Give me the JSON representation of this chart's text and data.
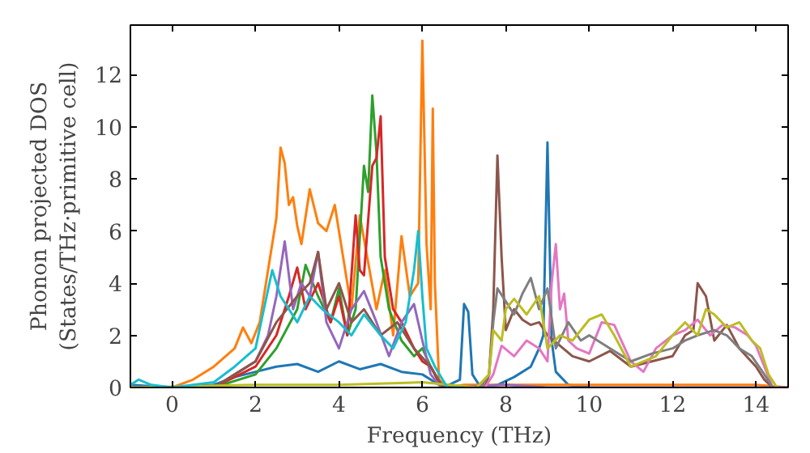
{
  "chart_data": {
    "type": "line",
    "xlabel": "Frequency (THz)",
    "ylabel": "Phonon projected DOS\n(States/THz·primitive cell)",
    "xlim": [
      -1,
      14.77
    ],
    "ylim": [
      0,
      13.9
    ],
    "xticks": [
      0,
      2,
      4,
      6,
      8,
      10,
      12,
      14
    ],
    "yticks": [
      0,
      2,
      4,
      6,
      8,
      10,
      12
    ],
    "grid": false,
    "series": [
      {
        "color": "#1f77b4",
        "x": [
          -1,
          0,
          1,
          1.5,
          2,
          2.5,
          3,
          3.5,
          4,
          4.5,
          5,
          5.5,
          6,
          6.3,
          6.5,
          6.9,
          7.0,
          7.1,
          7.2,
          7.4,
          7.8,
          8.2,
          8.6,
          8.8,
          8.9,
          9.0,
          9.1,
          9.2,
          9.5,
          10
        ],
        "values": [
          0.1,
          0,
          0.1,
          0.4,
          0.6,
          0.8,
          0.9,
          0.6,
          1.0,
          0.7,
          0.9,
          0.6,
          0.5,
          0.2,
          0,
          0.3,
          3.2,
          2.9,
          0.5,
          0,
          0.1,
          0.4,
          0.8,
          1.5,
          2.0,
          9.4,
          1.8,
          0.6,
          0.1,
          0
        ]
      },
      {
        "color": "#ff7f0e",
        "x": [
          -1,
          0,
          0.5,
          1,
          1.5,
          1.7,
          1.9,
          2.1,
          2.3,
          2.5,
          2.6,
          2.7,
          2.8,
          2.9,
          3.0,
          3.1,
          3.3,
          3.5,
          3.7,
          3.9,
          4.1,
          4.3,
          4.5,
          4.7,
          4.9,
          5.1,
          5.3,
          5.5,
          5.7,
          5.9,
          6.0,
          6.1,
          6.2,
          6.25,
          6.3,
          6.4,
          6.6,
          7,
          10,
          14,
          14.77
        ],
        "values": [
          0,
          0,
          0.3,
          0.8,
          1.5,
          2.3,
          1.7,
          2.5,
          4.5,
          6.5,
          9.2,
          8.6,
          7.0,
          7.3,
          6.2,
          5.5,
          7.6,
          6.3,
          6.0,
          7.0,
          5.0,
          3.0,
          6.6,
          4.8,
          3.0,
          4.5,
          2.0,
          5.8,
          3.5,
          4.0,
          13.3,
          5.5,
          3.0,
          10.7,
          4.0,
          0.3,
          0,
          0.1,
          0.1,
          0.1,
          0
        ]
      },
      {
        "color": "#2ca02c",
        "x": [
          1,
          2,
          2.5,
          3,
          3.2,
          3.5,
          3.8,
          4.0,
          4.2,
          4.4,
          4.6,
          4.7,
          4.8,
          4.9,
          5.0,
          5.2,
          5.5,
          5.8,
          6.0,
          6.2,
          6.4,
          6.6,
          7
        ],
        "values": [
          0,
          0.5,
          1.5,
          3,
          4.7,
          3.5,
          2.5,
          3.8,
          2.0,
          3.0,
          8.5,
          7.5,
          11.2,
          9.0,
          5.0,
          3.0,
          1.8,
          1.2,
          1.5,
          0.8,
          0.2,
          0,
          0
        ]
      },
      {
        "color": "#d62728",
        "x": [
          1,
          2,
          2.5,
          2.8,
          3.0,
          3.2,
          3.5,
          3.8,
          4.0,
          4.2,
          4.4,
          4.5,
          4.6,
          4.8,
          4.9,
          5.0,
          5.1,
          5.3,
          5.5,
          5.8,
          6.0,
          6.2,
          6.4,
          6.6,
          7
        ],
        "values": [
          0,
          0.8,
          2.0,
          3.5,
          4.6,
          3.0,
          4.0,
          2.5,
          3.5,
          2.0,
          6.6,
          4.5,
          4.3,
          8.5,
          8.8,
          10.4,
          5.0,
          3.0,
          2.5,
          1.5,
          1.0,
          0.8,
          0.2,
          0,
          0
        ]
      },
      {
        "color": "#9467bd",
        "x": [
          1,
          1.5,
          2,
          2.3,
          2.5,
          2.7,
          2.9,
          3.1,
          3.3,
          3.5,
          3.7,
          4.0,
          4.3,
          4.6,
          4.9,
          5.2,
          5.5,
          5.8,
          6.0,
          6.2,
          6.4,
          6.6,
          8,
          9,
          12,
          14.77
        ],
        "values": [
          0,
          0.5,
          1.0,
          2.0,
          3.5,
          5.6,
          3.0,
          4.0,
          3.5,
          5.2,
          2.5,
          1.5,
          3.0,
          3.7,
          2.5,
          1.2,
          2.5,
          3.2,
          1.8,
          0.5,
          0.1,
          0,
          0.1,
          0,
          0,
          0
        ]
      },
      {
        "color": "#8c564b",
        "x": [
          1,
          1.5,
          2,
          2.5,
          3.0,
          3.3,
          3.5,
          3.7,
          4.0,
          4.3,
          4.6,
          5.0,
          5.4,
          5.8,
          6.2,
          6.5,
          7.0,
          7.5,
          7.6,
          7.7,
          7.8,
          7.9,
          8.0,
          8.2,
          8.4,
          8.6,
          8.8,
          9.0,
          9.3,
          9.6,
          10,
          10.5,
          11,
          11.5,
          12,
          12.3,
          12.5,
          12.6,
          12.8,
          13,
          13.3,
          13.6,
          14,
          14.2,
          14.4
        ],
        "values": [
          0,
          0.5,
          1.0,
          2.5,
          3.5,
          4.0,
          5.2,
          3.0,
          4.0,
          2.5,
          3.0,
          2.0,
          2.5,
          1.5,
          0.8,
          0,
          0,
          0,
          0.5,
          3,
          8.9,
          5,
          2.2,
          3.0,
          2.6,
          2.4,
          2.5,
          2.0,
          1.6,
          1.2,
          1.0,
          1.4,
          0.8,
          1.0,
          1.2,
          2.0,
          2.2,
          4.0,
          3.5,
          1.8,
          2.4,
          1.5,
          0.8,
          0.3,
          0
        ]
      },
      {
        "color": "#e377c2",
        "x": [
          7.5,
          7.7,
          7.9,
          8.2,
          8.5,
          8.8,
          9.0,
          9.1,
          9.2,
          9.3,
          9.4,
          9.5,
          9.7,
          10.0,
          10.3,
          10.6,
          11,
          11.3,
          11.6,
          12,
          12.3,
          12.6,
          12.9,
          13.2,
          13.5,
          13.8,
          14.0,
          14.2,
          14.4
        ],
        "values": [
          0,
          0.5,
          1.6,
          1.2,
          1.8,
          1.5,
          1.0,
          4.0,
          5.5,
          3.0,
          3.6,
          1.8,
          1.5,
          1.3,
          2.5,
          2.4,
          1.0,
          0.6,
          1.5,
          2.0,
          2.2,
          2.6,
          2.0,
          2.4,
          2.3,
          2.0,
          1.6,
          0.8,
          0
        ]
      },
      {
        "color": "#7f7f7f",
        "x": [
          7.4,
          7.6,
          7.7,
          7.8,
          8.0,
          8.2,
          8.4,
          8.6,
          8.8,
          9.0,
          9.2,
          9.5,
          9.8,
          10,
          10.5,
          11,
          11.5,
          12,
          12.3,
          12.6,
          13,
          13.3,
          13.6,
          13.9,
          14.2,
          14.4
        ],
        "values": [
          0,
          0.5,
          2.5,
          3.8,
          3.3,
          2.8,
          3.6,
          4.2,
          3.0,
          3.8,
          1.5,
          2.5,
          1.8,
          2.0,
          1.5,
          1.0,
          1.3,
          1.5,
          1.8,
          2.0,
          2.2,
          2.0,
          1.5,
          1.2,
          0.5,
          0
        ]
      },
      {
        "color": "#bcbd22",
        "x": [
          -1,
          2,
          4,
          6,
          7.3,
          7.6,
          7.7,
          7.9,
          8.0,
          8.2,
          8.5,
          8.8,
          9.0,
          9.3,
          9.6,
          10,
          10.3,
          10.6,
          11,
          11.3,
          11.6,
          12,
          12.3,
          12.6,
          12.8,
          13,
          13.3,
          13.6,
          13.9,
          14.1,
          14.3,
          14.5
        ],
        "values": [
          0,
          0.1,
          0.1,
          0.2,
          0,
          0.5,
          2.2,
          1.8,
          3.0,
          3.4,
          2.8,
          3.5,
          1.5,
          2.0,
          1.8,
          2.6,
          2.8,
          2.0,
          0.8,
          1.0,
          1.2,
          2.0,
          2.5,
          2.0,
          3.0,
          2.8,
          2.3,
          2.5,
          1.8,
          1.5,
          0.5,
          0
        ]
      },
      {
        "color": "#17becf",
        "x": [
          -1,
          -0.8,
          -0.5,
          0,
          1,
          1.5,
          2,
          2.2,
          2.4,
          2.6,
          2.8,
          3.0,
          3.3,
          3.6,
          4.0,
          4.3,
          4.6,
          5.0,
          5.3,
          5.6,
          5.8,
          5.9,
          6.0,
          6.1,
          6.3,
          6.6,
          7
        ],
        "values": [
          0.1,
          0.3,
          0.1,
          0,
          0.2,
          0.8,
          1.5,
          3.0,
          4.5,
          3.5,
          3.0,
          2.5,
          3.5,
          3.0,
          2.5,
          2.0,
          2.8,
          2.0,
          1.5,
          2.5,
          4.5,
          6.0,
          3.5,
          1.5,
          0.8,
          0,
          0
        ]
      }
    ]
  }
}
